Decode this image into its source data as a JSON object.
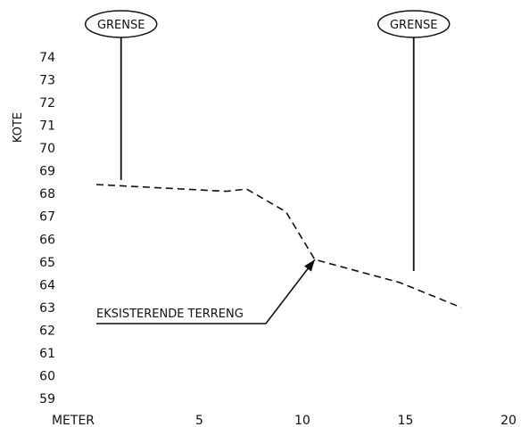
{
  "chart_data": {
    "type": "line",
    "xlabel": "METER",
    "ylabel": "KOTE",
    "xlim": [
      0,
      20
    ],
    "ylim": [
      59,
      74
    ],
    "x_ticks": [
      5,
      10,
      15,
      20
    ],
    "y_ticks": [
      59,
      60,
      61,
      62,
      63,
      64,
      65,
      66,
      67,
      68,
      69,
      70,
      71,
      72,
      73,
      74
    ],
    "grid": false,
    "line_style": "dashed",
    "series": [
      {
        "name": "EKSISTERENDE TERRENG",
        "x": [
          0,
          6.3,
          7.3,
          9.2,
          10.6,
          14.7,
          17.7
        ],
        "y": [
          68.4,
          68.1,
          68.2,
          67.2,
          65.1,
          64.1,
          63.0
        ]
      }
    ],
    "annotations": [
      {
        "text": "GRENSE",
        "style": "ellipse",
        "x": 1.2,
        "line_bottom_y": 68.6
      },
      {
        "text": "GRENSE",
        "style": "ellipse",
        "x": 15.4,
        "line_bottom_y": 64.6
      },
      {
        "text": "EKSISTERENDE TERRENG",
        "style": "leader-arrow",
        "arrow_to": [
          10.6,
          65.1
        ]
      }
    ]
  }
}
